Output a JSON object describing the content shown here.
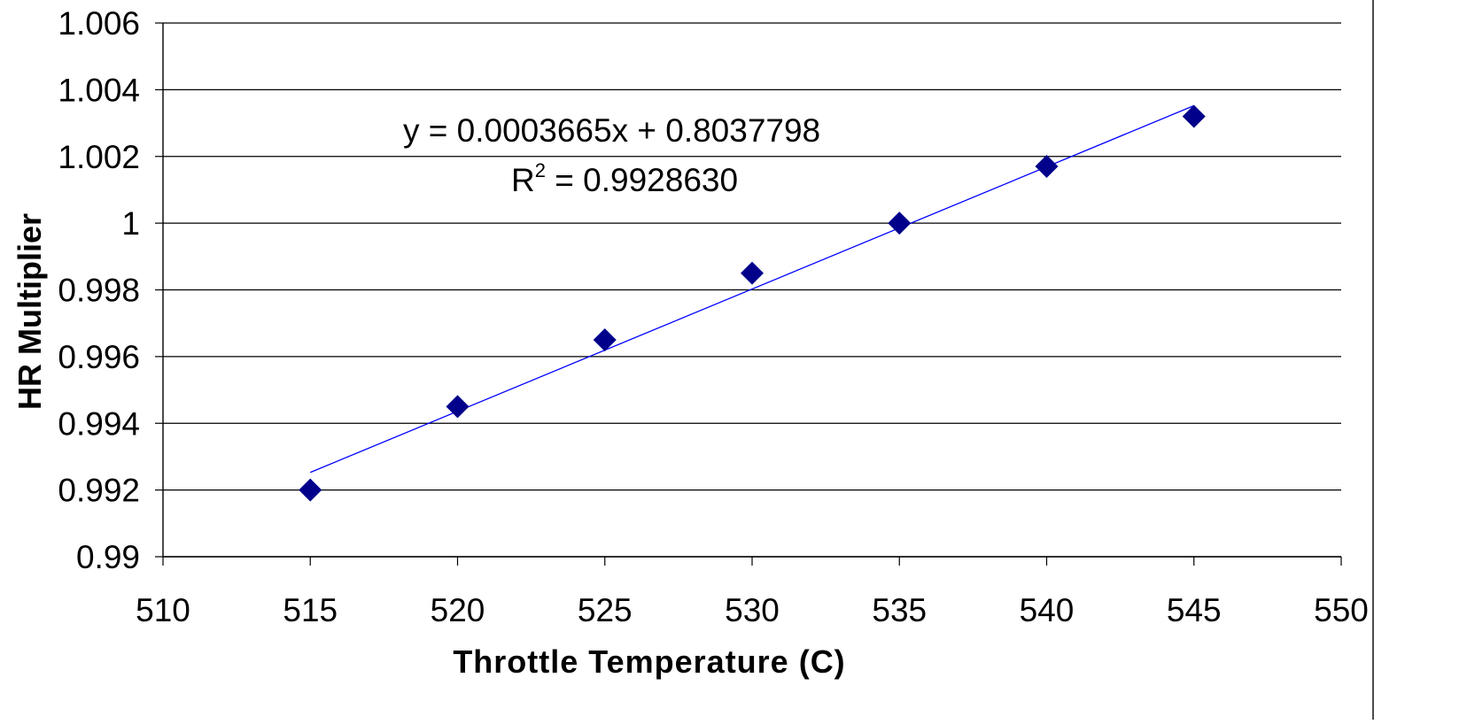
{
  "chart_data": {
    "type": "scatter",
    "title": "",
    "xlabel": "Throttle Temperature (C)",
    "ylabel": "HR Multiplier",
    "xlim": [
      510,
      550
    ],
    "ylim": [
      0.99,
      1.006
    ],
    "x_ticks": [
      "510",
      "515",
      "520",
      "525",
      "530",
      "535",
      "540",
      "545",
      "550"
    ],
    "y_ticks": [
      "0.99",
      "0.992",
      "0.994",
      "0.996",
      "0.998",
      "1",
      "1.002",
      "1.004",
      "1.006"
    ],
    "grid": "horizontal",
    "legend": "none",
    "series": [
      {
        "marker": "diamond",
        "color": "#00008B",
        "points": [
          {
            "x": 515,
            "y": 0.992
          },
          {
            "x": 520,
            "y": 0.9945
          },
          {
            "x": 525,
            "y": 0.9965
          },
          {
            "x": 530,
            "y": 0.9985
          },
          {
            "x": 535,
            "y": 1.0
          },
          {
            "x": 540,
            "y": 1.0017
          },
          {
            "x": 545,
            "y": 1.0032
          }
        ]
      }
    ],
    "trendline": {
      "type": "linear",
      "color": "#0000FF",
      "slope": 0.0003665,
      "intercept": 0.8037798,
      "x_range": [
        515,
        545
      ]
    },
    "annotations": {
      "equation": "y = 0.0003665x + 0.8037798",
      "r2_prefix": "R",
      "r2_sup": "2",
      "r2_value": " = 0.9928630"
    }
  }
}
